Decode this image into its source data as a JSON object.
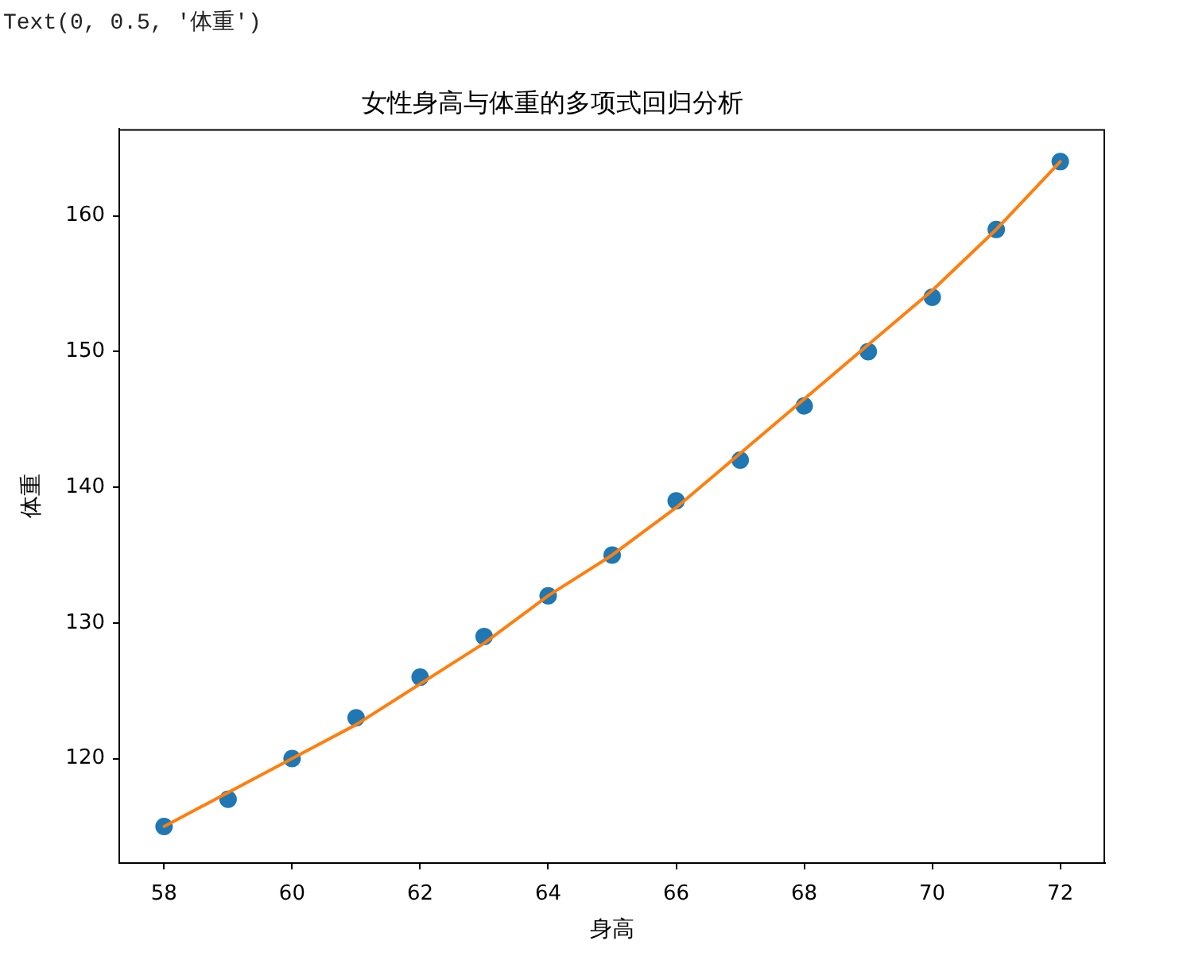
{
  "chart_data": {
    "type": "scatter",
    "title": "女性身高与体重的多项式回归分析",
    "xlabel": "身高",
    "ylabel": "体重",
    "annotations": [
      "Text(0, 0.5, '体重')"
    ],
    "x": [
      58,
      59,
      60,
      61,
      62,
      63,
      64,
      65,
      66,
      67,
      68,
      69,
      70,
      71,
      72
    ],
    "series": [
      {
        "color": "#1f77b4",
        "marker": "circle",
        "values": [
          115,
          117,
          120,
          123,
          126,
          129,
          132,
          135,
          139,
          142,
          146,
          150,
          154,
          159,
          164
        ]
      },
      {
        "type": "line",
        "color": "#ff7f0e",
        "marker": "none",
        "line_style": "solid",
        "values": [
          115,
          117.5,
          120,
          122.5,
          125.5,
          128.5,
          132,
          135,
          138.5,
          142.5,
          146.5,
          150.5,
          154.5,
          159,
          164
        ]
      }
    ],
    "xlim": [
      57.3,
      72.7
    ],
    "ylim": [
      112.3,
      166.4
    ],
    "xticks": [
      58,
      60,
      62,
      64,
      66,
      68,
      70,
      72
    ],
    "yticks": [
      120,
      130,
      140,
      150,
      160
    ]
  }
}
